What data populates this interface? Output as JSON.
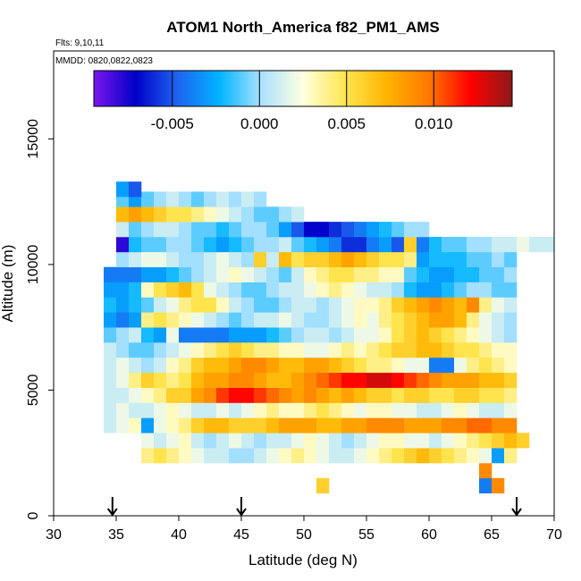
{
  "chart_data": {
    "type": "heatmap",
    "title": "ATOM1 North_America f82_PM1_AMS",
    "annotations": [
      "Flts: 9,10,11",
      "MMDD: 0820,0822,0823"
    ],
    "xlabel": "Latitude (deg N)",
    "ylabel": "Altitude (m)",
    "xlim": [
      30,
      70
    ],
    "ylim": [
      0,
      18500
    ],
    "x_ticks": [
      "30",
      "35",
      "40",
      "45",
      "50",
      "55",
      "60",
      "65",
      "70"
    ],
    "y_ticks": [
      "0",
      "5000",
      "10000",
      "15000"
    ],
    "colorbar": {
      "range": [
        -0.0095,
        0.0145
      ],
      "ticks": [
        "-0.005",
        "0.000",
        "0.005",
        "0.010"
      ],
      "tick_values": [
        -0.005,
        0.0,
        0.005,
        0.01
      ],
      "colors": [
        "#7b16f0",
        "#0000c8",
        "#1e64f0",
        "#00b4ff",
        "#aae1ff",
        "#ffffe0",
        "#ffe650",
        "#ffb400",
        "#ff7800",
        "#ff0000",
        "#8c1a1a"
      ]
    },
    "arrows_at_latitude": [
      34.7,
      45,
      67
    ],
    "grid_latitude_step": 1,
    "grid_altitude_step": 600,
    "rows": [
      {
        "alt": 1200,
        "lat": [
          51,
          61
        ],
        "values": [
          0.006
        ]
      },
      {
        "alt": 1200,
        "lat": [
          64,
          66
        ],
        "values": [
          -0.004,
          0.009
        ]
      },
      {
        "alt": 1800,
        "lat": [
          64,
          65
        ],
        "values": [
          0.009
        ]
      },
      {
        "alt": 2400,
        "lat": [
          37,
          67
        ],
        "values": [
          0.004,
          0.005,
          0.004,
          0.003,
          0.002,
          0.001,
          0.001,
          0.0,
          0.0,
          0.001,
          0.002,
          0.003,
          0.004,
          0.003,
          0.002,
          0.001,
          0.001,
          0.002,
          0.003,
          0.004,
          0.005,
          0.006,
          0.007,
          0.006,
          0.005,
          0.004,
          0.003,
          0.002,
          -0.003,
          0.004
        ]
      },
      {
        "alt": 3000,
        "lat": [
          37,
          68
        ],
        "values": [
          0.002,
          0.001,
          0.002,
          0.003,
          0.001,
          0.0,
          0.001,
          0.002,
          0.001,
          0.0,
          0.001,
          0.001,
          0.002,
          0.003,
          0.002,
          0.001,
          0.0,
          0.001,
          0.002,
          0.003,
          0.003,
          0.002,
          0.002,
          0.001,
          0.002,
          0.003,
          0.004,
          0.005,
          0.006,
          0.007,
          0.006
        ]
      },
      {
        "alt": 3600,
        "lat": [
          34,
          67
        ],
        "values": [
          0.001,
          0.002,
          0.003,
          -0.003,
          0.002,
          0.003,
          0.004,
          0.006,
          0.007,
          0.007,
          0.006,
          0.006,
          0.006,
          0.007,
          0.008,
          0.008,
          0.008,
          0.007,
          0.007,
          0.008,
          0.008,
          0.009,
          0.009,
          0.009,
          0.008,
          0.008,
          0.008,
          0.009,
          0.009,
          0.01,
          0.01,
          0.009,
          0.009
        ]
      },
      {
        "alt": 4200,
        "lat": [
          34,
          67
        ],
        "values": [
          0.001,
          0.002,
          0.001,
          0.001,
          0.002,
          0.003,
          0.002,
          0.001,
          0.001,
          0.002,
          0.001,
          0.002,
          0.003,
          0.004,
          0.003,
          0.003,
          0.004,
          0.005,
          0.004,
          0.003,
          0.002,
          0.003,
          0.003,
          0.002,
          0.002,
          0.001,
          0.001,
          0.002,
          0.003,
          0.002,
          0.001,
          0.001,
          0.002
        ]
      },
      {
        "alt": 4800,
        "lat": [
          34,
          67
        ],
        "values": [
          0.001,
          0.001,
          0.002,
          0.003,
          0.004,
          0.006,
          0.006,
          0.008,
          0.009,
          0.011,
          0.012,
          0.012,
          0.011,
          0.01,
          0.009,
          0.008,
          0.009,
          0.008,
          0.007,
          0.008,
          0.007,
          0.006,
          0.006,
          0.005,
          0.006,
          0.006,
          0.005,
          0.005,
          0.006,
          0.006,
          0.005,
          0.005,
          0.004
        ]
      },
      {
        "alt": 5400,
        "lat": [
          34,
          67
        ],
        "values": [
          0.001,
          0.002,
          0.004,
          0.006,
          0.005,
          0.004,
          0.005,
          0.007,
          0.008,
          0.008,
          0.009,
          0.009,
          0.008,
          0.007,
          0.007,
          0.008,
          0.009,
          0.01,
          0.011,
          0.012,
          0.012,
          0.013,
          0.013,
          0.012,
          0.011,
          0.01,
          0.009,
          0.008,
          0.008,
          0.008,
          0.007,
          0.007,
          0.006
        ]
      },
      {
        "alt": 6000,
        "lat": [
          34,
          67
        ],
        "values": [
          0.001,
          0.002,
          0.001,
          0.0,
          0.001,
          0.003,
          0.004,
          0.006,
          0.007,
          0.007,
          0.008,
          0.009,
          0.009,
          0.008,
          0.007,
          0.007,
          0.008,
          0.008,
          0.007,
          0.006,
          0.005,
          0.004,
          0.004,
          0.003,
          0.002,
          0.002,
          -0.004,
          -0.004,
          0.002,
          0.004,
          0.005,
          0.004,
          0.003
        ]
      },
      {
        "alt": 6600,
        "lat": [
          34,
          67
        ],
        "values": [
          0.001,
          0.0,
          -0.001,
          -0.001,
          0.0,
          0.001,
          0.002,
          0.003,
          0.004,
          0.005,
          0.006,
          0.005,
          0.004,
          0.004,
          0.003,
          0.003,
          0.002,
          0.002,
          0.003,
          0.004,
          0.003,
          0.004,
          0.005,
          0.006,
          0.006,
          0.007,
          0.007,
          0.006,
          0.005,
          0.005,
          0.004,
          0.003,
          0.003
        ]
      },
      {
        "alt": 7200,
        "lat": [
          34,
          67
        ],
        "values": [
          -0.001,
          0.0,
          0.001,
          -0.002,
          -0.003,
          0.002,
          -0.004,
          -0.004,
          -0.004,
          -0.004,
          -0.003,
          -0.003,
          -0.003,
          -0.002,
          -0.001,
          0.0,
          0.001,
          0.001,
          0.0,
          0.001,
          0.002,
          0.002,
          0.003,
          0.005,
          0.006,
          0.007,
          0.006,
          0.005,
          0.004,
          0.003,
          0.002,
          0.001,
          0.0
        ]
      },
      {
        "alt": 7800,
        "lat": [
          34,
          67
        ],
        "values": [
          -0.003,
          -0.004,
          -0.003,
          0.004,
          0.005,
          0.004,
          0.003,
          0.002,
          0.001,
          0.0,
          -0.001,
          0.0,
          0.001,
          0.001,
          0.002,
          0.001,
          0.0,
          0.0,
          0.001,
          0.002,
          0.003,
          0.002,
          0.004,
          0.005,
          0.006,
          0.007,
          0.008,
          0.008,
          0.007,
          0.004,
          0.002,
          0.001,
          0.0
        ]
      },
      {
        "alt": 8400,
        "lat": [
          34,
          67
        ],
        "values": [
          -0.002,
          -0.003,
          -0.002,
          -0.001,
          0.001,
          0.002,
          0.004,
          0.005,
          0.005,
          0.003,
          0.001,
          0.0,
          -0.001,
          -0.001,
          0.0,
          0.001,
          0.001,
          0.0,
          0.001,
          0.002,
          0.003,
          0.003,
          0.004,
          0.006,
          0.007,
          0.008,
          0.009,
          0.008,
          0.007,
          0.009,
          0.004,
          0.002,
          0.001
        ]
      },
      {
        "alt": 9000,
        "lat": [
          34,
          67
        ],
        "values": [
          -0.003,
          -0.003,
          -0.002,
          0.003,
          0.005,
          0.006,
          0.007,
          0.005,
          0.002,
          0.001,
          0.0,
          -0.001,
          -0.001,
          0.0,
          0.001,
          0.001,
          0.002,
          0.003,
          0.004,
          0.003,
          0.002,
          0.001,
          0.001,
          0.0,
          -0.002,
          -0.003,
          -0.003,
          -0.002,
          -0.001,
          0.0,
          0.0,
          -0.001,
          -0.001
        ]
      },
      {
        "alt": 9600,
        "lat": [
          34,
          67
        ],
        "values": [
          -0.004,
          -0.004,
          -0.004,
          -0.003,
          -0.003,
          -0.002,
          -0.001,
          0.0,
          0.001,
          0.002,
          0.003,
          0.002,
          0.001,
          0.0,
          -0.001,
          0.001,
          0.003,
          0.004,
          0.005,
          0.005,
          0.004,
          0.004,
          0.003,
          0.003,
          -0.001,
          -0.002,
          -0.003,
          -0.003,
          -0.002,
          -0.002,
          -0.001,
          -0.001,
          0.0
        ]
      },
      {
        "alt": 10200,
        "lat": [
          35,
          67
        ],
        "values": [
          0.0,
          0.001,
          0.002,
          0.002,
          0.001,
          0.0,
          0.0,
          0.001,
          0.002,
          0.001,
          0.0,
          0.006,
          0.001,
          0.007,
          0.005,
          0.006,
          0.006,
          0.007,
          0.008,
          0.007,
          0.006,
          0.005,
          0.005,
          0.004,
          -0.003,
          -0.002,
          -0.002,
          -0.002,
          -0.001,
          -0.001,
          0.0,
          -0.001
        ]
      },
      {
        "alt": 10800,
        "lat": [
          35,
          70
        ],
        "values": [
          -0.008,
          -0.002,
          -0.001,
          -0.001,
          0.0,
          0.0,
          -0.001,
          -0.002,
          -0.003,
          -0.002,
          -0.001,
          0.0,
          0.0,
          0.001,
          -0.001,
          -0.002,
          -0.003,
          -0.004,
          -0.006,
          -0.006,
          -0.004,
          -0.003,
          -0.005,
          0.006,
          -0.004,
          -0.002,
          -0.001,
          -0.001,
          0.0,
          0.0,
          0.001,
          0.001,
          0.002,
          0.001,
          0.001
        ]
      },
      {
        "alt": 11400,
        "lat": [
          35,
          60
        ],
        "values": [
          0.001,
          -0.001,
          0.0,
          0.001,
          0.001,
          0.0,
          -0.001,
          -0.001,
          -0.002,
          -0.001,
          0.0,
          0.0,
          -0.001,
          -0.003,
          -0.005,
          -0.007,
          -0.007,
          -0.006,
          -0.005,
          -0.004,
          -0.003,
          -0.002,
          -0.001,
          0.0,
          0.0
        ]
      },
      {
        "alt": 12000,
        "lat": [
          35,
          50
        ],
        "values": [
          0.007,
          0.008,
          0.007,
          0.006,
          0.005,
          0.005,
          0.004,
          0.003,
          0.002,
          0.001,
          0.0,
          -0.001,
          -0.001,
          0.0,
          0.001
        ]
      },
      {
        "alt": 12600,
        "lat": [
          35,
          47
        ],
        "values": [
          -0.001,
          -0.003,
          -0.001,
          0.0,
          0.001,
          0.0,
          -0.001,
          0.0,
          0.001,
          0.0,
          0.001,
          0.0
        ]
      },
      {
        "alt": 13000,
        "lat": [
          35,
          37
        ],
        "values": [
          -0.003,
          -0.005
        ]
      }
    ]
  }
}
